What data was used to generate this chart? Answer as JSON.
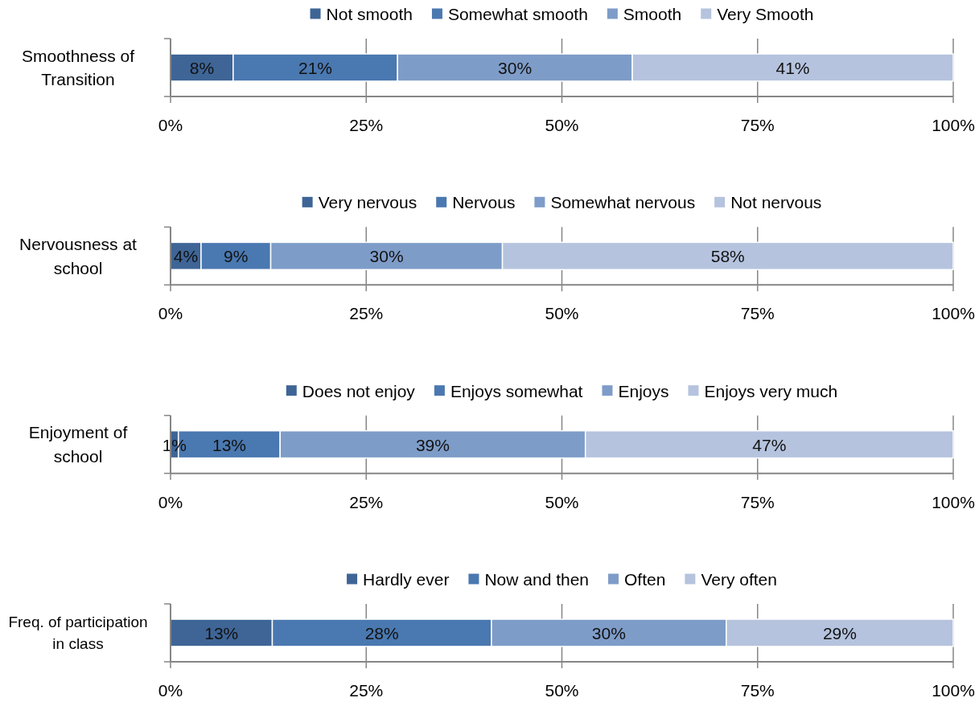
{
  "chart_data": [
    {
      "type": "bar",
      "orientation": "horizontal",
      "stacked": true,
      "categories": [
        "Smoothness of Transition"
      ],
      "series": [
        {
          "name": "Not smooth",
          "color": "#3e6596",
          "values": [
            8
          ],
          "value_labels": [
            "8%"
          ]
        },
        {
          "name": "Somewhat smooth",
          "color": "#4a78b0",
          "values": [
            21
          ],
          "value_labels": [
            "21%"
          ]
        },
        {
          "name": "Smooth",
          "color": "#7e9cc8",
          "values": [
            30
          ],
          "value_labels": [
            "30%"
          ]
        },
        {
          "name": "Very Smooth",
          "color": "#b5c3de",
          "values": [
            41
          ],
          "value_labels": [
            "41%"
          ]
        }
      ],
      "xlim": [
        0,
        100
      ],
      "xticks": [
        {
          "value": 0,
          "label": "0%"
        },
        {
          "value": 25,
          "label": "25%"
        },
        {
          "value": 50,
          "label": "50%"
        },
        {
          "value": 75,
          "label": "75%"
        },
        {
          "value": 100,
          "label": "100%"
        }
      ],
      "grid": "x",
      "legend": "top"
    },
    {
      "type": "bar",
      "orientation": "horizontal",
      "stacked": true,
      "categories": [
        "Nervousness at school"
      ],
      "series": [
        {
          "name": "Very nervous",
          "color": "#3e6596",
          "values": [
            3.9
          ],
          "value_labels": [
            "4%"
          ]
        },
        {
          "name": "Nervous",
          "color": "#4a78b0",
          "values": [
            8.9
          ],
          "value_labels": [
            "9%"
          ]
        },
        {
          "name": "Somewhat nervous",
          "color": "#7e9cc8",
          "values": [
            29.6
          ],
          "value_labels": [
            "30%"
          ]
        },
        {
          "name": "Not nervous",
          "color": "#b5c3de",
          "values": [
            57.6
          ],
          "value_labels": [
            "58%"
          ]
        }
      ],
      "xlim": [
        0,
        100
      ],
      "xticks": [
        {
          "value": 0,
          "label": "0%"
        },
        {
          "value": 25,
          "label": "25%"
        },
        {
          "value": 50,
          "label": "50%"
        },
        {
          "value": 75,
          "label": "75%"
        },
        {
          "value": 100,
          "label": "100%"
        }
      ],
      "grid": "x",
      "legend": "top"
    },
    {
      "type": "bar",
      "orientation": "horizontal",
      "stacked": true,
      "categories": [
        "Enjoyment of school"
      ],
      "series": [
        {
          "name": "Does not enjoy",
          "color": "#3e6596",
          "values": [
            1
          ],
          "value_labels": [
            "1%"
          ]
        },
        {
          "name": "Enjoys somewhat",
          "color": "#4a78b0",
          "values": [
            13
          ],
          "value_labels": [
            "13%"
          ]
        },
        {
          "name": "Enjoys",
          "color": "#7e9cc8",
          "values": [
            39
          ],
          "value_labels": [
            "39%"
          ]
        },
        {
          "name": "Enjoys very much",
          "color": "#b5c3de",
          "values": [
            47
          ],
          "value_labels": [
            "47%"
          ]
        }
      ],
      "xlim": [
        0,
        100
      ],
      "xticks": [
        {
          "value": 0,
          "label": "0%"
        },
        {
          "value": 25,
          "label": "25%"
        },
        {
          "value": 50,
          "label": "50%"
        },
        {
          "value": 75,
          "label": "75%"
        },
        {
          "value": 100,
          "label": "100%"
        }
      ],
      "grid": "x",
      "legend": "top"
    },
    {
      "type": "bar",
      "orientation": "horizontal",
      "stacked": true,
      "categories": [
        "Freq. of participation in class"
      ],
      "series": [
        {
          "name": "Hardly ever",
          "color": "#3e6596",
          "values": [
            13
          ],
          "value_labels": [
            "13%"
          ]
        },
        {
          "name": "Now and then",
          "color": "#4a78b0",
          "values": [
            28
          ],
          "value_labels": [
            "28%"
          ]
        },
        {
          "name": "Often",
          "color": "#7e9cc8",
          "values": [
            30
          ],
          "value_labels": [
            "30%"
          ]
        },
        {
          "name": "Very often",
          "color": "#b5c3de",
          "values": [
            29
          ],
          "value_labels": [
            "29%"
          ]
        }
      ],
      "xlim": [
        0,
        100
      ],
      "xticks": [
        {
          "value": 0,
          "label": "0%"
        },
        {
          "value": 25,
          "label": "25%"
        },
        {
          "value": 50,
          "label": "50%"
        },
        {
          "value": 75,
          "label": "75%"
        },
        {
          "value": 100,
          "label": "100%"
        }
      ],
      "grid": "x",
      "legend": "top"
    }
  ]
}
